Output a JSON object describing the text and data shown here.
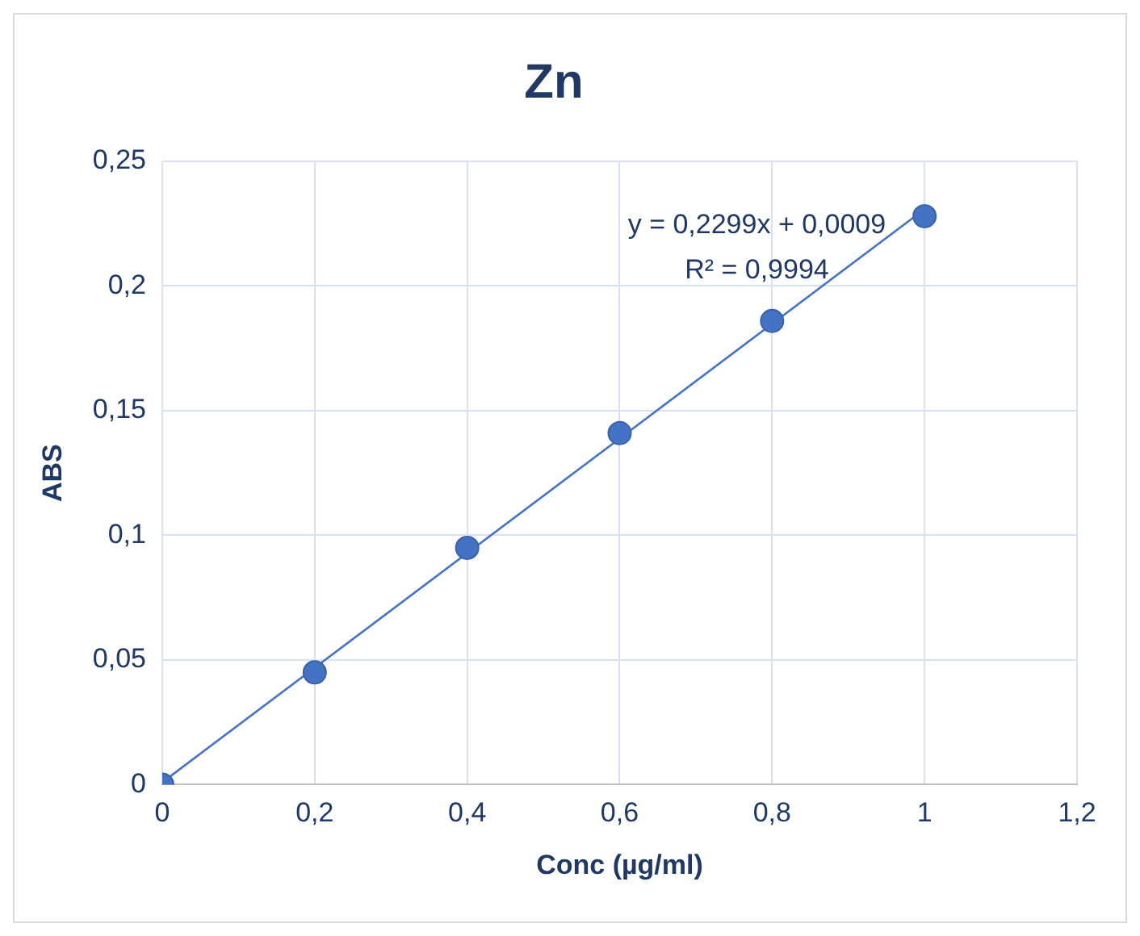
{
  "chart_data": {
    "type": "scatter",
    "title": "Zn",
    "xlabel": "Conc (µg/ml)",
    "ylabel": "ABS",
    "x": [
      0,
      0.2,
      0.4,
      0.6,
      0.8,
      1
    ],
    "series": [
      {
        "type": "scatter",
        "color": "#4472c4",
        "marker": "circle",
        "values": [
          0,
          0.045,
          0.095,
          0.141,
          0.186,
          0.228
        ]
      },
      {
        "type": "line",
        "color": "#4472c4",
        "x": [
          0,
          1
        ],
        "values": [
          0.0009,
          0.2308
        ]
      }
    ],
    "xlim": [
      0,
      1.2
    ],
    "xticks": [
      0,
      {
        "value": 0.2,
        "label": "0,2"
      },
      {
        "value": 0.4,
        "label": "0,4"
      },
      {
        "value": 0.6,
        "label": "0,6"
      },
      {
        "value": 0.8,
        "label": "0,8"
      },
      1,
      {
        "value": 1.2,
        "label": "1,2"
      }
    ],
    "ylim": [
      0,
      0.25
    ],
    "yticks": [
      0,
      {
        "value": 0.05,
        "label": "0,05"
      },
      {
        "value": 0.1,
        "label": "0,1"
      },
      {
        "value": 0.15,
        "label": "0,15"
      },
      {
        "value": 0.2,
        "label": "0,2"
      },
      {
        "value": 0.25,
        "label": "0,25"
      }
    ],
    "grid": true,
    "annotations": [
      "y = 0,2299x + 0,0009",
      "R² = 0,9994"
    ]
  }
}
